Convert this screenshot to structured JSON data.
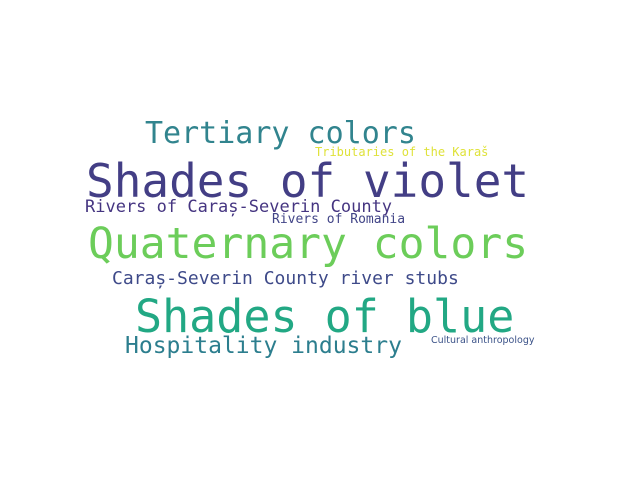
{
  "words": [
    {
      "text": "Tertiary colors",
      "color": "#31848e"
    },
    {
      "text": "Tributaries of the Karaš",
      "color": "#dfe23a"
    },
    {
      "text": "Shades of violet",
      "color": "#433e85"
    },
    {
      "text": "Rivers of Caraș-Severin County",
      "color": "#453581"
    },
    {
      "text": "Rivers of Romania",
      "color": "#414487"
    },
    {
      "text": "Quaternary colors",
      "color": "#6ccd5a"
    },
    {
      "text": "Caraș-Severin County river stubs",
      "color": "#3e4a89"
    },
    {
      "text": "Shades of blue",
      "color": "#22a884"
    },
    {
      "text": "Hospitality industry",
      "color": "#2c7e8e"
    },
    {
      "text": "Cultural anthropology",
      "color": "#3b5288"
    }
  ]
}
